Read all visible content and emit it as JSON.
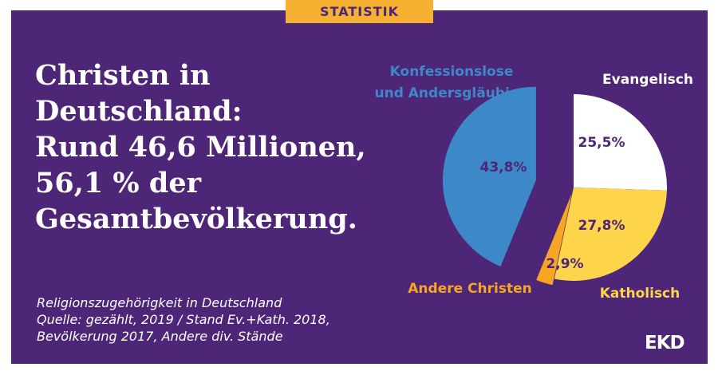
{
  "tag": "STATISTIK",
  "headline_lines": [
    "Christen in",
    "Deutschland:",
    "Rund 46,6 Millionen,",
    "56,1 % der",
    "Gesamtbevölkerung."
  ],
  "source_lines": [
    "Religionszugehörigkeit in Deutschland",
    "Quelle: gezählt, 2019 / Stand Ev.+Kath. 2018,",
    "Bevölkerung 2017, Andere div. Stände"
  ],
  "logo": "EKD",
  "colors": {
    "background": "#4e2677",
    "accent": "#f6b133",
    "text": "#ffffff"
  },
  "chart_data": {
    "type": "pie",
    "title": "",
    "slices": [
      {
        "label_lines": [
          "Evangelisch"
        ],
        "value": 25.5,
        "value_label": "25,5%",
        "color": "#ffffff",
        "value_text_color": "#4e2677",
        "label_color": "#ffffff"
      },
      {
        "label_lines": [
          "Katholisch"
        ],
        "value": 27.8,
        "value_label": "27,8%",
        "color": "#fed54a",
        "value_text_color": "#4e2677",
        "label_color": "#fed54a"
      },
      {
        "label_lines": [
          "Andere Christen"
        ],
        "value": 2.9,
        "value_label": "2,9%",
        "color": "#f6a623",
        "value_text_color": "#4e2677",
        "label_color": "#f6a623"
      },
      {
        "label_lines": [
          "Konfessionslose",
          "und Andersgläubige"
        ],
        "value": 43.8,
        "value_label": "43,8%",
        "color": "#3d88c9",
        "value_text_color": "#4e2677",
        "label_color": "#3d88c9"
      }
    ]
  }
}
